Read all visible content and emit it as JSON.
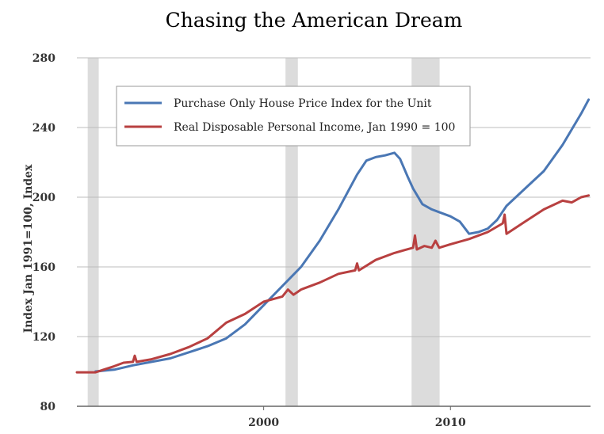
{
  "chart_data": {
    "type": "line",
    "title": "Chasing the American Dream",
    "ylabel": "Index Jan 1991=100, Index",
    "xlabel": "",
    "ylim": [
      80,
      280
    ],
    "xlim": [
      1990.0,
      2017.5
    ],
    "yticks": [
      "80",
      "120",
      "160",
      "200",
      "240",
      "280"
    ],
    "xticks": [
      {
        "label": "2000",
        "year": 2000
      },
      {
        "label": "2010",
        "year": 2010
      }
    ],
    "grid": true,
    "legend_position": "top-left",
    "recessions": [
      [
        1990.58,
        1991.17
      ],
      [
        2001.17,
        2001.83
      ],
      [
        2007.92,
        2009.42
      ]
    ],
    "series": [
      {
        "name": "Purchase Only House Price Index for the Unit",
        "color": "#4a77b4",
        "points": [
          [
            1991.0,
            100
          ],
          [
            1992.0,
            101
          ],
          [
            1993.0,
            103.5
          ],
          [
            1994.0,
            105.5
          ],
          [
            1995.0,
            107.5
          ],
          [
            1996.0,
            111
          ],
          [
            1997.0,
            114.5
          ],
          [
            1998.0,
            119
          ],
          [
            1999.0,
            127
          ],
          [
            2000.0,
            138
          ],
          [
            2001.0,
            149
          ],
          [
            2002.0,
            160
          ],
          [
            2003.0,
            175
          ],
          [
            2004.0,
            193
          ],
          [
            2005.0,
            213
          ],
          [
            2005.5,
            221
          ],
          [
            2006.0,
            223
          ],
          [
            2006.5,
            224
          ],
          [
            2007.0,
            225.5
          ],
          [
            2007.3,
            222
          ],
          [
            2007.7,
            212
          ],
          [
            2008.0,
            205
          ],
          [
            2008.5,
            196
          ],
          [
            2009.0,
            193
          ],
          [
            2009.5,
            191
          ],
          [
            2010.0,
            189
          ],
          [
            2010.5,
            186
          ],
          [
            2011.0,
            179
          ],
          [
            2011.5,
            180
          ],
          [
            2012.0,
            182
          ],
          [
            2012.5,
            187
          ],
          [
            2013.0,
            195
          ],
          [
            2014.0,
            205
          ],
          [
            2015.0,
            215
          ],
          [
            2016.0,
            230
          ],
          [
            2017.0,
            248
          ],
          [
            2017.4,
            256
          ]
        ]
      },
      {
        "name": "Real Disposable Personal Income, Jan 1990 = 100",
        "color": "#b84040",
        "points": [
          [
            1990.0,
            99.5
          ],
          [
            1991.0,
            99.5
          ],
          [
            1992.0,
            103
          ],
          [
            1992.5,
            105
          ],
          [
            1993.0,
            105.5
          ],
          [
            1993.1,
            109
          ],
          [
            1993.2,
            105.5
          ],
          [
            1994.0,
            107
          ],
          [
            1995.0,
            110
          ],
          [
            1996.0,
            114
          ],
          [
            1997.0,
            119
          ],
          [
            1998.0,
            128
          ],
          [
            1999.0,
            133
          ],
          [
            2000.0,
            140
          ],
          [
            2001.0,
            143
          ],
          [
            2001.3,
            147
          ],
          [
            2001.6,
            144
          ],
          [
            2002.0,
            147
          ],
          [
            2003.0,
            151
          ],
          [
            2004.0,
            156
          ],
          [
            2004.9,
            158
          ],
          [
            2005.0,
            162
          ],
          [
            2005.1,
            158
          ],
          [
            2006.0,
            164
          ],
          [
            2007.0,
            168
          ],
          [
            2008.0,
            171
          ],
          [
            2008.1,
            178
          ],
          [
            2008.2,
            170
          ],
          [
            2008.6,
            172
          ],
          [
            2009.0,
            171
          ],
          [
            2009.2,
            175
          ],
          [
            2009.4,
            171
          ],
          [
            2010.0,
            173
          ],
          [
            2011.0,
            176
          ],
          [
            2012.0,
            180
          ],
          [
            2012.8,
            185
          ],
          [
            2012.9,
            190
          ],
          [
            2013.0,
            179
          ],
          [
            2014.0,
            186
          ],
          [
            2015.0,
            193
          ],
          [
            2016.0,
            198
          ],
          [
            2016.5,
            197
          ],
          [
            2017.0,
            200
          ],
          [
            2017.4,
            201
          ]
        ]
      }
    ]
  }
}
